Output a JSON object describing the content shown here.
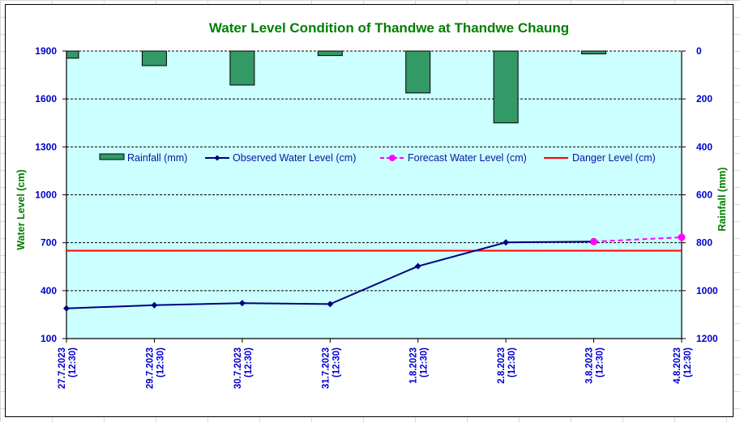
{
  "chart_data": {
    "type": "bar+line",
    "title": "Water Level Condition of Thandwe at Thandwe Chaung",
    "categories": [
      [
        "27.7.2023",
        "(12:30)"
      ],
      [
        "29.7.2023",
        "(12:30)"
      ],
      [
        "30.7.2023",
        "(12:30)"
      ],
      [
        "31.7.2023",
        "(12:30)"
      ],
      [
        "1.8.2023",
        "(12:30)"
      ],
      [
        "2.8.2023",
        "(12:30)"
      ],
      [
        "3.8.2023",
        "(12:30)"
      ],
      [
        "4.8.2023",
        "(12:30)"
      ]
    ],
    "ylabel_left": "Water Level (cm)",
    "ylabel_right": "Rainfall (mm)",
    "ylim_left": [
      100,
      1900
    ],
    "yticks_left": [
      100,
      400,
      700,
      1000,
      1300,
      1600,
      1900
    ],
    "ylim_right": [
      0,
      1200
    ],
    "right_axis_inverted": true,
    "yticks_right": [
      0,
      200,
      400,
      600,
      800,
      1000,
      1200
    ],
    "grid": true,
    "plot_background": "#ccffff",
    "legend_position": "upper-center",
    "series": [
      {
        "name": "Rainfall (mm)",
        "kind": "bar",
        "axis": "right",
        "color": "#339966",
        "values": [
          30,
          61,
          142,
          19,
          175,
          300,
          12,
          null
        ]
      },
      {
        "name": "Observed Water Level (cm)",
        "kind": "line",
        "marker": "diamond",
        "axis": "left",
        "color": "#000080",
        "values": [
          289,
          309,
          322,
          316,
          553,
          702,
          707,
          null
        ]
      },
      {
        "name": "Forecast Water Level (cm)",
        "kind": "line-dashed",
        "marker": "circle",
        "axis": "left",
        "color": "#ff00ff",
        "values": [
          null,
          null,
          null,
          null,
          null,
          null,
          707,
          734
        ]
      },
      {
        "name": "Danger Level (cm)",
        "kind": "hline",
        "axis": "left",
        "color": "#ff0000",
        "value": 650
      }
    ]
  }
}
